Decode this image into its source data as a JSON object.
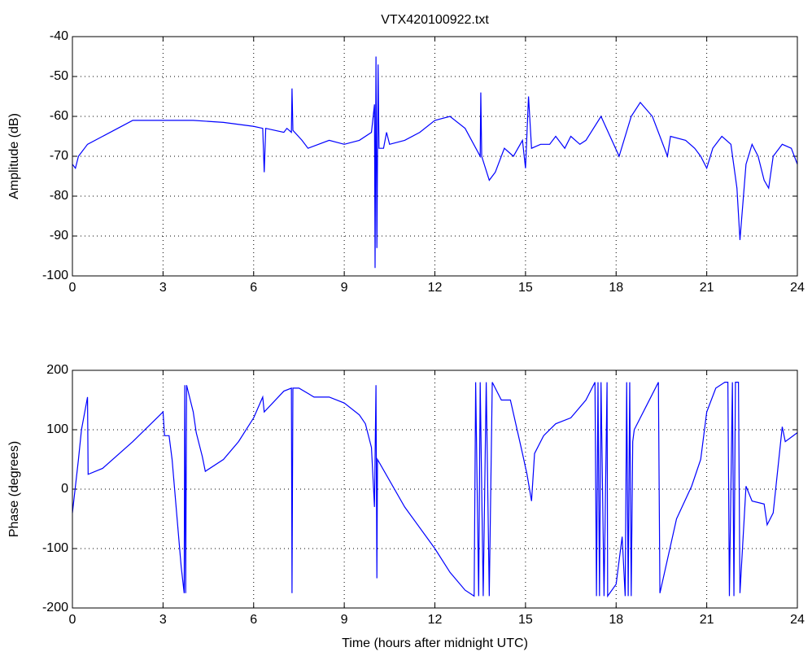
{
  "chart_data": [
    {
      "type": "line",
      "title": "VTX420100922.txt",
      "ylabel": "Amplitude (dB)",
      "xlim": [
        0,
        24
      ],
      "xticks": [
        0,
        3,
        6,
        9,
        12,
        15,
        18,
        21,
        24
      ],
      "ylim": [
        -100,
        -40
      ],
      "yticks": [
        -100,
        -90,
        -80,
        -70,
        -60,
        -50,
        -40
      ],
      "grid": true,
      "x": [
        0,
        0.1,
        0.2,
        0.5,
        1,
        1.5,
        2,
        3,
        4,
        5,
        6,
        6.3,
        6.35,
        6.4,
        7,
        7.1,
        7.25,
        7.27,
        7.3,
        7.6,
        7.8,
        8.5,
        9,
        9.5,
        9.9,
        10,
        10.02,
        10.05,
        10.08,
        10.12,
        10.15,
        10.3,
        10.4,
        10.5,
        11,
        11.5,
        12,
        12.5,
        13,
        13.5,
        13.52,
        13.55,
        13.8,
        14,
        14.3,
        14.6,
        14.9,
        15,
        15.1,
        15.2,
        15.5,
        15.8,
        16,
        16.3,
        16.5,
        16.8,
        17,
        17.5,
        17.8,
        18.1,
        18.5,
        18.8,
        19.2,
        19.5,
        19.7,
        19.8,
        20.3,
        20.6,
        20.8,
        21,
        21.2,
        21.5,
        21.8,
        22,
        22.1,
        22.3,
        22.5,
        22.7,
        22.9,
        23.05,
        23.2,
        23.5,
        23.8,
        24
      ],
      "series": [
        {
          "color": "#0000ff",
          "values": [
            -72,
            -73,
            -70,
            -67,
            -65,
            -63,
            -61,
            -61,
            -61,
            -61.5,
            -62.5,
            -63,
            -74,
            -63,
            -64,
            -63,
            -64,
            -53,
            -63.5,
            -66,
            -68,
            -66,
            -67,
            -66,
            -64,
            -57,
            -98,
            -45,
            -93,
            -47,
            -68,
            -68,
            -64,
            -67,
            -66,
            -64,
            -61,
            -60,
            -63,
            -70,
            -54,
            -70,
            -76,
            -74,
            -68,
            -70,
            -66,
            -73,
            -55,
            -68,
            -67,
            -67,
            -65,
            -68,
            -65,
            -67,
            -66,
            -60,
            -65,
            -70,
            -60,
            -56.5,
            -60,
            -66,
            -70,
            -65,
            -66,
            -68,
            -70,
            -73,
            -68,
            -65,
            -67,
            -78,
            -91,
            -72,
            -67,
            -70,
            -76,
            -78,
            -70,
            -67,
            -68,
            -72
          ]
        }
      ]
    },
    {
      "type": "line",
      "xlabel": "Time (hours after midnight UTC)",
      "ylabel": "Phase (degrees)",
      "xlim": [
        0,
        24
      ],
      "xticks": [
        0,
        3,
        6,
        9,
        12,
        15,
        18,
        21,
        24
      ],
      "ylim": [
        -200,
        200
      ],
      "yticks": [
        -200,
        -100,
        0,
        100,
        200
      ],
      "grid": true,
      "x": [
        0,
        0.2,
        0.3,
        0.5,
        0.52,
        1,
        2,
        3,
        3.05,
        3.2,
        3.3,
        3.6,
        3.7,
        3.72,
        3.75,
        3.78,
        4,
        4.1,
        4.3,
        4.4,
        5,
        5.5,
        6,
        6.3,
        6.35,
        7,
        7.25,
        7.27,
        7.3,
        7.5,
        8,
        8.5,
        9,
        9.5,
        9.7,
        9.9,
        10,
        10.05,
        10.08,
        10.1,
        11,
        12,
        12.5,
        13,
        13.3,
        13.35,
        13.45,
        13.5,
        13.6,
        13.7,
        13.8,
        13.9,
        14.2,
        14.5,
        14.9,
        15.05,
        15.2,
        15.3,
        15.6,
        16,
        16.5,
        17,
        17.3,
        17.35,
        17.4,
        17.45,
        17.5,
        17.6,
        17.7,
        17.72,
        18,
        18.2,
        18.3,
        18.35,
        18.4,
        18.45,
        18.5,
        18.55,
        18.6,
        19,
        19.4,
        19.45,
        20,
        20.5,
        20.8,
        21,
        21.3,
        21.6,
        21.7,
        21.75,
        21.85,
        21.9,
        21.95,
        22.05,
        22.1,
        22.3,
        22.5,
        22.9,
        23,
        23.2,
        23.5,
        23.6,
        24
      ],
      "series": [
        {
          "color": "#0000ff",
          "values": [
            -40,
            50,
            100,
            155,
            25,
            35,
            80,
            130,
            90,
            90,
            50,
            -130,
            -175,
            175,
            -175,
            175,
            130,
            95,
            55,
            30,
            50,
            80,
            120,
            155,
            130,
            165,
            170,
            -175,
            170,
            170,
            155,
            155,
            145,
            125,
            110,
            70,
            -30,
            175,
            -150,
            50,
            -30,
            -100,
            -140,
            -170,
            -180,
            180,
            -180,
            180,
            -180,
            180,
            -180,
            180,
            150,
            150,
            60,
            25,
            -20,
            60,
            90,
            110,
            120,
            150,
            180,
            -180,
            180,
            -180,
            180,
            -180,
            180,
            -180,
            -160,
            -80,
            -180,
            180,
            -180,
            180,
            -180,
            80,
            100,
            140,
            180,
            -175,
            -50,
            5,
            50,
            130,
            170,
            180,
            180,
            -180,
            180,
            -180,
            180,
            180,
            -175,
            5,
            -20,
            -25,
            -60,
            -40,
            105,
            80,
            95
          ]
        }
      ]
    }
  ]
}
